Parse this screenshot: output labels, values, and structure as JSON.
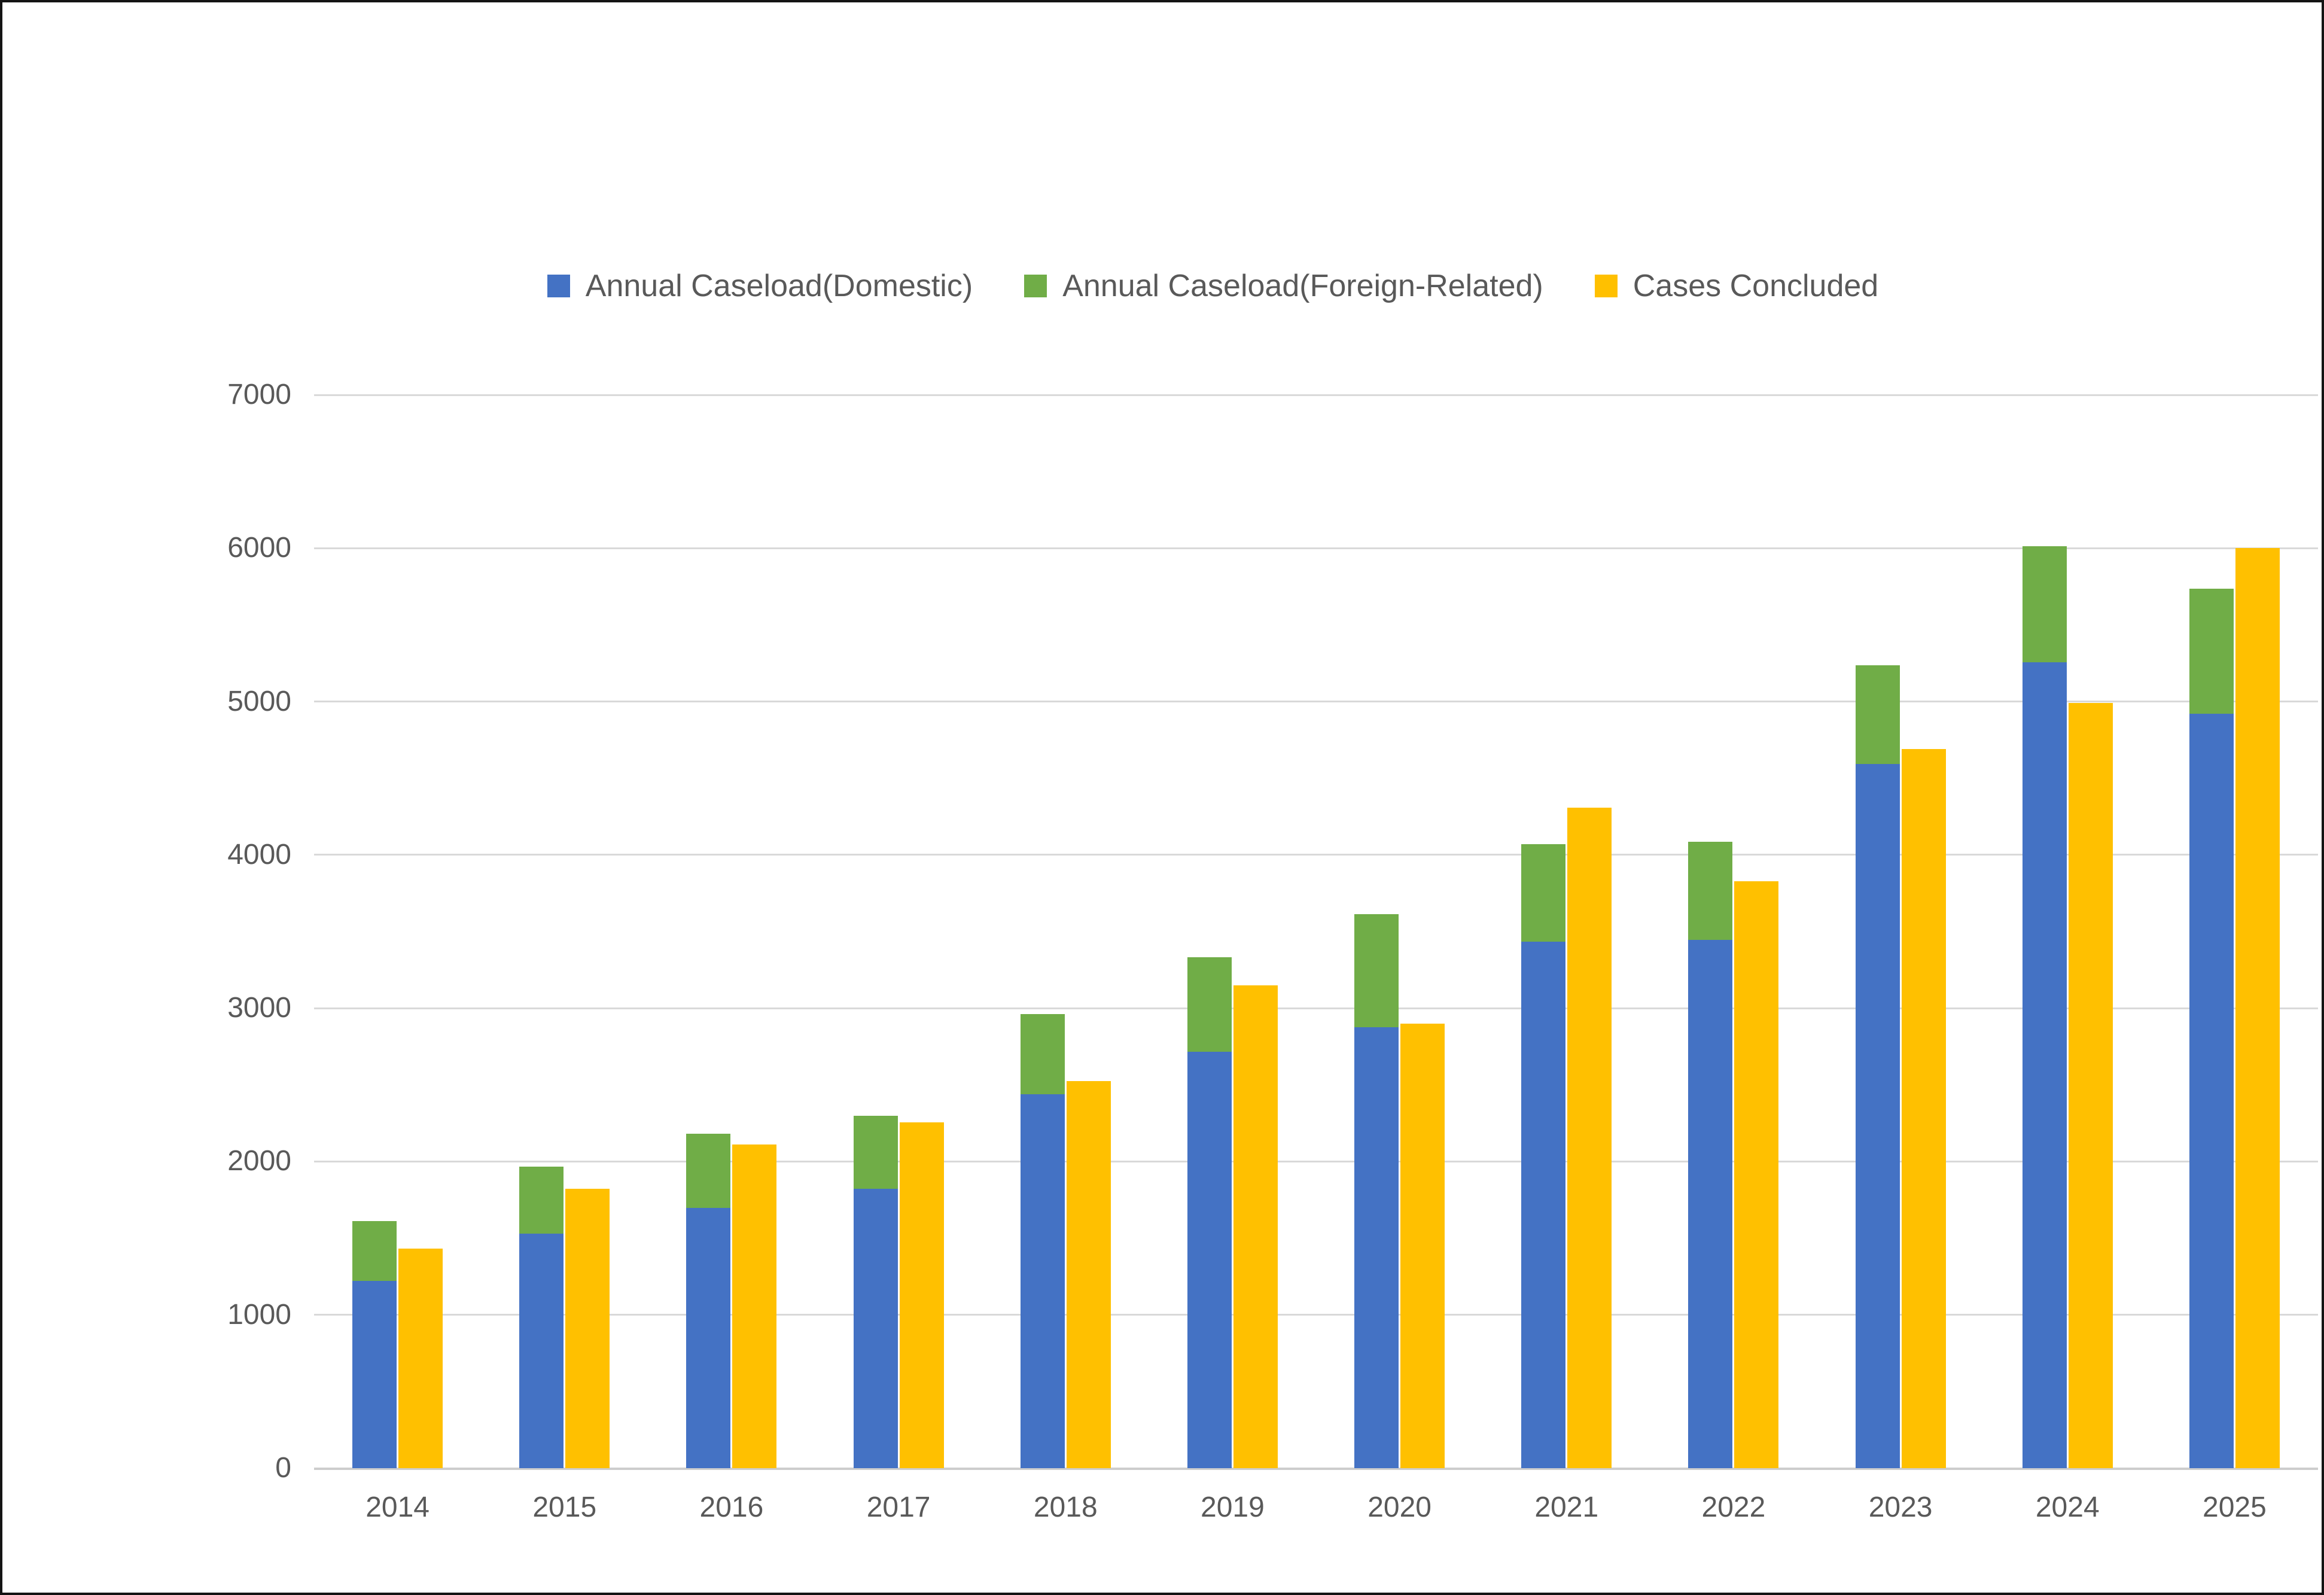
{
  "page": {
    "background": "#FFFFFF",
    "frame_border_color": "#141414"
  },
  "chart_data": {
    "type": "bar",
    "subtype": "stacked-plus-grouped-columns",
    "title": "",
    "xlabel": "",
    "ylabel": "",
    "categories": [
      "2014",
      "2015",
      "2016",
      "2017",
      "2018",
      "2019",
      "2020",
      "2021",
      "2022",
      "2023",
      "2024",
      "2025"
    ],
    "series": [
      {
        "name": "Annual Caseload(Domestic)",
        "color": "#4472C4",
        "stack": "caseload",
        "values": [
          1223,
          1531,
          1698,
          1822,
          2440,
          2716,
          2876,
          3435,
          3444,
          4592,
          5255,
          4920
        ]
      },
      {
        "name": "Annual Caseload(Foreign-Related)",
        "color": "#70AD47",
        "stack": "caseload",
        "values": [
          387,
          437,
          483,
          476,
          522,
          617,
          739,
          636,
          642,
          645,
          758,
          815
        ]
      },
      {
        "name": "Cases Concluded",
        "color": "#FFC000",
        "stack": "concluded",
        "values": [
          1432,
          1821,
          2111,
          2256,
          2524,
          3149,
          2898,
          4307,
          3829,
          4689,
          4989,
          6000
        ]
      }
    ],
    "stacked_totals": [
      1610,
      1968,
      2181,
      2298,
      2962,
      3333,
      3615,
      4071,
      4086,
      5237,
      6013,
      5735
    ],
    "ylim": [
      0,
      7000
    ],
    "yticks": [
      0,
      1000,
      2000,
      3000,
      4000,
      5000,
      6000,
      7000
    ],
    "grid": true,
    "legend_position": "top",
    "colors": {
      "gridline": "#D9D9D9",
      "axis_line": "#CDCDCD",
      "tick_text": "#595959",
      "legend_text": "#595959",
      "plot_background": "#FFFFFF"
    }
  }
}
